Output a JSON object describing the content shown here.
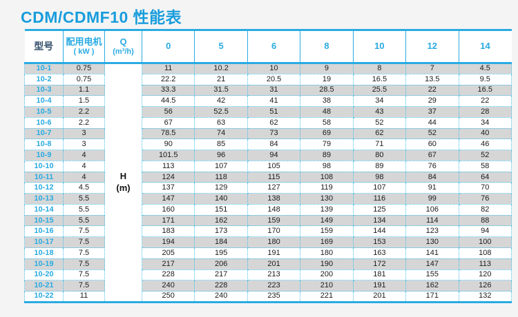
{
  "page": {
    "title": "CDM/CDMF10 性能表"
  },
  "colors": {
    "accent_cyan": "#29abe2",
    "title_blue": "#189ddc",
    "header_model_text": "#35506b",
    "stripe_gray": "#d6d6d6",
    "body_text": "#1a1a1a"
  },
  "chart_data": {
    "type": "table",
    "title": "CDM/CDMF10 性能表",
    "header": {
      "model": "型号",
      "motor_line1": "配用电机",
      "motor_line2": "( kW )",
      "q_line1": "Q",
      "q_line2": "(m³/h)",
      "flow_values": [
        "0",
        "5",
        "6",
        "8",
        "10",
        "12",
        "14"
      ]
    },
    "body_label": {
      "line1": "H",
      "line2": "(m)"
    },
    "rows": [
      {
        "model": "10-1",
        "kw": "0.75",
        "h_values": [
          "11",
          "10.2",
          "10",
          "9",
          "8",
          "7",
          "4.5"
        ]
      },
      {
        "model": "10-2",
        "kw": "0.75",
        "h_values": [
          "22.2",
          "21",
          "20.5",
          "19",
          "16.5",
          "13.5",
          "9.5"
        ]
      },
      {
        "model": "10-3",
        "kw": "1.1",
        "h_values": [
          "33.3",
          "31.5",
          "31",
          "28.5",
          "25.5",
          "22",
          "16.5"
        ]
      },
      {
        "model": "10-4",
        "kw": "1.5",
        "h_values": [
          "44.5",
          "42",
          "41",
          "38",
          "34",
          "29",
          "22"
        ]
      },
      {
        "model": "10-5",
        "kw": "2.2",
        "h_values": [
          "56",
          "52.5",
          "51",
          "48",
          "43",
          "37",
          "28"
        ]
      },
      {
        "model": "10-6",
        "kw": "2.2",
        "h_values": [
          "67",
          "63",
          "62",
          "58",
          "52",
          "44",
          "34"
        ]
      },
      {
        "model": "10-7",
        "kw": "3",
        "h_values": [
          "78.5",
          "74",
          "73",
          "69",
          "62",
          "52",
          "40"
        ]
      },
      {
        "model": "10-8",
        "kw": "3",
        "h_values": [
          "90",
          "85",
          "84",
          "79",
          "71",
          "60",
          "46"
        ]
      },
      {
        "model": "10-9",
        "kw": "4",
        "h_values": [
          "101.5",
          "96",
          "94",
          "89",
          "80",
          "67",
          "52"
        ]
      },
      {
        "model": "10-10",
        "kw": "4",
        "h_values": [
          "113",
          "107",
          "105",
          "98",
          "89",
          "76",
          "58"
        ]
      },
      {
        "model": "10-11",
        "kw": "4",
        "h_values": [
          "124",
          "118",
          "115",
          "108",
          "98",
          "84",
          "64"
        ]
      },
      {
        "model": "10-12",
        "kw": "4.5",
        "h_values": [
          "137",
          "129",
          "127",
          "119",
          "107",
          "91",
          "70"
        ]
      },
      {
        "model": "10-13",
        "kw": "5.5",
        "h_values": [
          "147",
          "140",
          "138",
          "130",
          "116",
          "99",
          "76"
        ]
      },
      {
        "model": "10-14",
        "kw": "5.5",
        "h_values": [
          "160",
          "151",
          "148",
          "139",
          "125",
          "106",
          "82"
        ]
      },
      {
        "model": "10-15",
        "kw": "5.5",
        "h_values": [
          "171",
          "162",
          "159",
          "149",
          "134",
          "114",
          "88"
        ]
      },
      {
        "model": "10-16",
        "kw": "7.5",
        "h_values": [
          "183",
          "173",
          "170",
          "159",
          "144",
          "123",
          "94"
        ]
      },
      {
        "model": "10-17",
        "kw": "7.5",
        "h_values": [
          "194",
          "184",
          "180",
          "169",
          "153",
          "130",
          "100"
        ]
      },
      {
        "model": "10-18",
        "kw": "7.5",
        "h_values": [
          "205",
          "195",
          "191",
          "180",
          "163",
          "141",
          "108"
        ]
      },
      {
        "model": "10-19",
        "kw": "7.5",
        "h_values": [
          "217",
          "206",
          "201",
          "190",
          "172",
          "147",
          "113"
        ]
      },
      {
        "model": "10-20",
        "kw": "7.5",
        "h_values": [
          "228",
          "217",
          "213",
          "200",
          "181",
          "155",
          "120"
        ]
      },
      {
        "model": "10-21",
        "kw": "7.5",
        "h_values": [
          "240",
          "228",
          "223",
          "210",
          "191",
          "162",
          "126"
        ]
      },
      {
        "model": "10-22",
        "kw": "11",
        "h_values": [
          "250",
          "240",
          "235",
          "221",
          "201",
          "171",
          "132"
        ]
      }
    ]
  }
}
